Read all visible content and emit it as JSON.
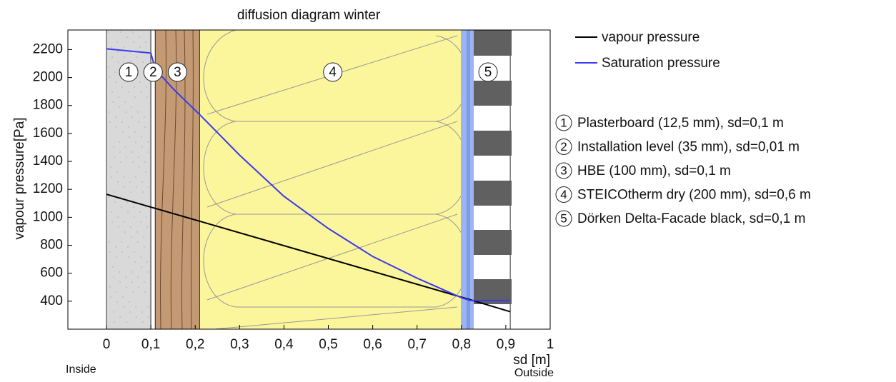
{
  "chart_data": {
    "type": "line",
    "title": "diffusion diagram winter",
    "x_label": "sd [m]",
    "y_label": "vapour pressure[Pa]",
    "inside_label": "Inside",
    "outside_label": "Outside",
    "xlim": [
      -0.087,
      1.0
    ],
    "ylim": [
      200,
      2340
    ],
    "xticks": [
      0,
      {
        "value": 0.1,
        "label": "0,1"
      },
      {
        "value": 0.2,
        "label": "0,2"
      },
      {
        "value": 0.3,
        "label": "0,3"
      },
      {
        "value": 0.4,
        "label": "0,4"
      },
      {
        "value": 0.5,
        "label": "0,5"
      },
      {
        "value": 0.6,
        "label": "0,6"
      },
      {
        "value": 0.7,
        "label": "0,7"
      },
      {
        "value": 0.8,
        "label": "0,8"
      },
      {
        "value": 0.9,
        "label": "0,9"
      },
      1
    ],
    "yticks": [
      400,
      600,
      800,
      1000,
      1200,
      1400,
      1600,
      1800,
      2000,
      2200
    ],
    "series": [
      {
        "name": "vapour pressure",
        "color": "#000000",
        "x": [
          0,
          0.1,
          0.11,
          0.21,
          0.81,
          0.91
        ],
        "values": [
          1165,
          1073,
          1064,
          972,
          420,
          325
        ]
      },
      {
        "name": "Saturation pressure",
        "color": "#3a3aee",
        "x": [
          0,
          0.1,
          0.11,
          0.15,
          0.21,
          0.3,
          0.4,
          0.5,
          0.6,
          0.7,
          0.8,
          0.82,
          0.91
        ],
        "values": [
          2205,
          2175,
          2060,
          1920,
          1735,
          1445,
          1150,
          920,
          720,
          565,
          425,
          405,
          405
        ]
      }
    ],
    "layers": [
      {
        "label": "1",
        "text": "Plasterboard (12,5 mm), sd=0,1 m",
        "start": 0,
        "end": 0.1,
        "color": "#d9d9d9"
      },
      {
        "label": "2",
        "text": "Installation level (35 mm), sd=0,01 m",
        "start": 0.1,
        "end": 0.11,
        "color": "#ffffff"
      },
      {
        "label": "3",
        "text": "HBE (100 mm), sd=0,1 m",
        "start": 0.11,
        "end": 0.21,
        "color": "#c49a74"
      },
      {
        "label": "4",
        "text": "STEICOtherm dry (200 mm), sd=0,6 m",
        "start": 0.21,
        "end": 0.81,
        "color": "#fbf59b"
      },
      {
        "label": "5",
        "text": "Dörken Delta-Facade black, sd=0,1 m",
        "start": 0.81,
        "end": 0.91,
        "color": "#ffffff"
      }
    ]
  }
}
